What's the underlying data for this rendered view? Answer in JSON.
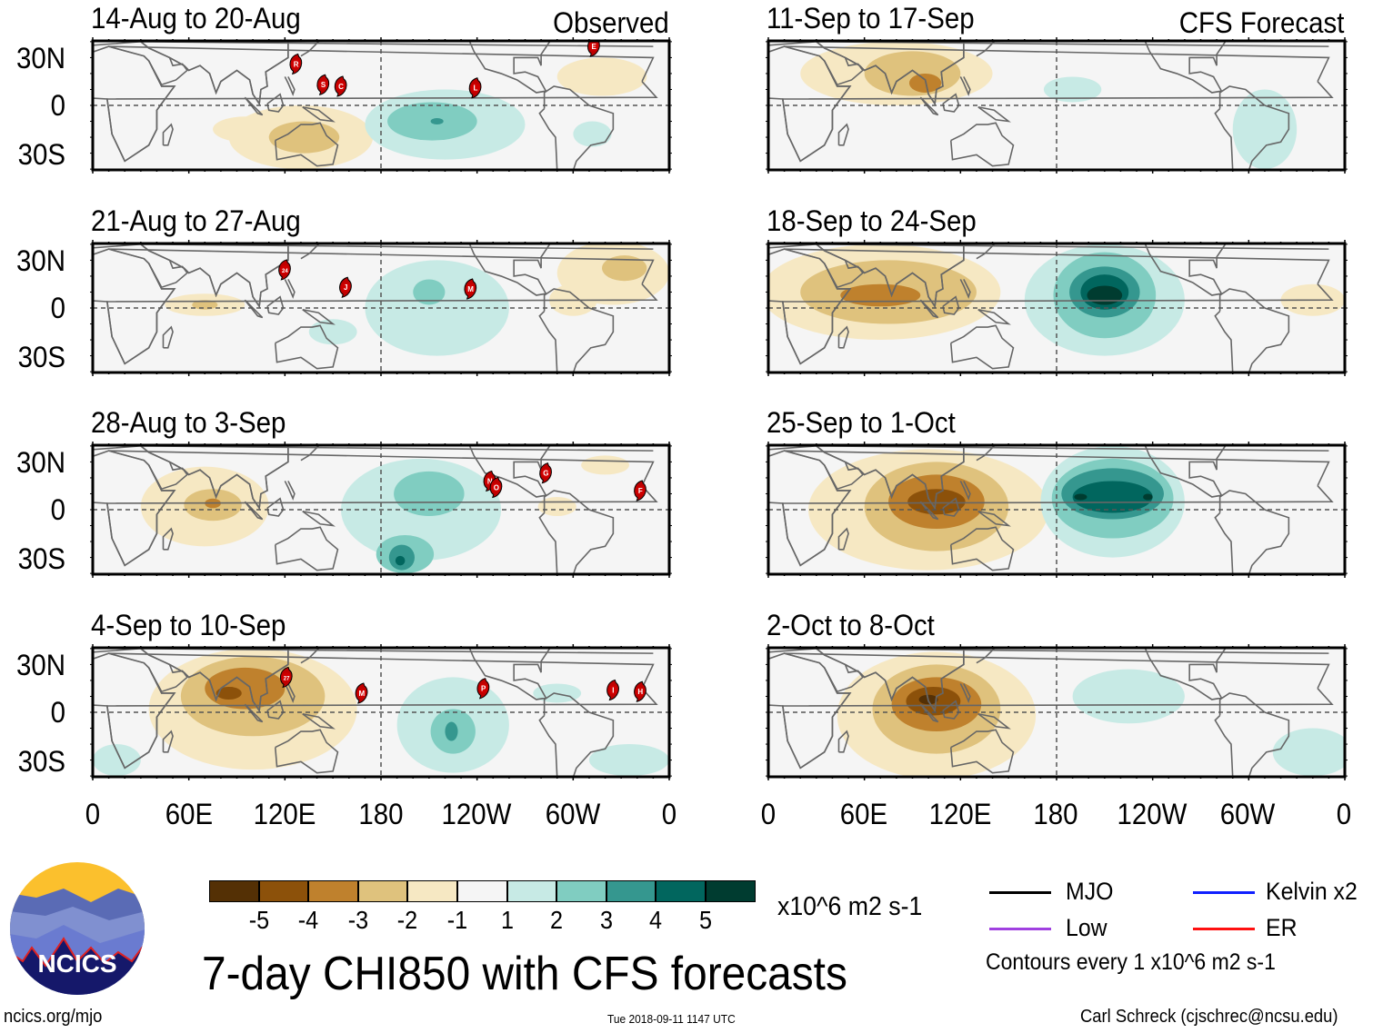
{
  "labels": {
    "observed": "Observed",
    "forecast": "CFS Forecast"
  },
  "y_ticks": [
    "30N",
    "0",
    "30S"
  ],
  "x_ticks": [
    "0",
    "60E",
    "120E",
    "180",
    "120W",
    "60W",
    "0"
  ],
  "colorbar": {
    "colors": [
      "#543005",
      "#8c510a",
      "#bf812d",
      "#dfc27d",
      "#f6e8c3",
      "#f5f5f5",
      "#c7eae5",
      "#80cdc1",
      "#35978f",
      "#01665e",
      "#003c30"
    ],
    "ticks": [
      "-5",
      "-4",
      "-3",
      "-2",
      "-1",
      "1",
      "2",
      "3",
      "4",
      "5"
    ],
    "units": "x10^6 m2 s-1"
  },
  "title": "7-day CHI850 with CFS forecasts",
  "legend": {
    "mjo": "MJO",
    "kelvin": "Kelvin x2",
    "low": "Low",
    "er": "ER",
    "contours": "Contours every 1 x10^6 m2 s-1",
    "colors": {
      "mjo": "#000000",
      "kelvin": "#0000ff",
      "low": "#a040e0",
      "er": "#ff0000"
    }
  },
  "logo": {
    "text": "NCICS"
  },
  "footer": {
    "url": "ncics.org/mjo",
    "timestamp": "Tue 2018-09-11 1147 UTC",
    "author": "Carl Schreck (cjschrec@ncsu.edu)"
  },
  "chart_data": [
    {
      "type": "map",
      "title": "14-Aug to 20-Aug",
      "column": "observed",
      "anomalies": [
        {
          "lon": 130,
          "lat": -20,
          "rlon": 45,
          "rlat": 20,
          "level": -1
        },
        {
          "lon": 132,
          "lat": -20,
          "rlon": 22,
          "rlat": 10,
          "level": -2
        },
        {
          "lon": 95,
          "lat": -15,
          "rlon": 20,
          "rlat": 8,
          "level": -1
        },
        {
          "lon": 220,
          "lat": -12,
          "rlon": 50,
          "rlat": 22,
          "level": 1
        },
        {
          "lon": 212,
          "lat": -10,
          "rlon": 28,
          "rlat": 12,
          "level": 2
        },
        {
          "lon": 215,
          "lat": -10,
          "rlon": 4,
          "rlat": 2,
          "level": 3
        },
        {
          "lon": 318,
          "lat": 18,
          "rlon": 28,
          "rlat": 12,
          "level": -1
        },
        {
          "lon": 312,
          "lat": -18,
          "rlon": 12,
          "rlat": 8,
          "level": 1
        }
      ],
      "storms": [
        {
          "id": "R",
          "lon": 127,
          "lat": 26
        },
        {
          "id": "S",
          "lon": 144,
          "lat": 13
        },
        {
          "id": "C",
          "lon": 155,
          "lat": 12
        },
        {
          "id": "L",
          "lon": 239,
          "lat": 11
        },
        {
          "id": "E",
          "lon": 313,
          "lat": 37
        }
      ]
    },
    {
      "type": "map",
      "title": "21-Aug to 27-Aug",
      "column": "observed",
      "anomalies": [
        {
          "lon": 325,
          "lat": 22,
          "rlon": 35,
          "rlat": 20,
          "level": -1
        },
        {
          "lon": 332,
          "lat": 25,
          "rlon": 14,
          "rlat": 8,
          "level": -2
        },
        {
          "lon": 70,
          "lat": 2,
          "rlon": 25,
          "rlat": 7,
          "level": -1
        },
        {
          "lon": 70,
          "lat": 2,
          "rlon": 8,
          "rlat": 3,
          "level": -2
        },
        {
          "lon": 215,
          "lat": 0,
          "rlon": 45,
          "rlat": 30,
          "level": 1
        },
        {
          "lon": 210,
          "lat": 10,
          "rlon": 10,
          "rlat": 8,
          "level": 2
        },
        {
          "lon": 150,
          "lat": -15,
          "rlon": 15,
          "rlat": 8,
          "level": 1
        },
        {
          "lon": 300,
          "lat": 5,
          "rlon": 15,
          "rlat": 10,
          "level": -1
        }
      ],
      "storms": [
        {
          "id": "24",
          "lon": 120,
          "lat": 24
        },
        {
          "id": "J",
          "lon": 158,
          "lat": 13
        },
        {
          "id": "M",
          "lon": 236,
          "lat": 12
        }
      ]
    },
    {
      "type": "map",
      "title": "28-Aug to 3-Sep",
      "column": "observed",
      "anomalies": [
        {
          "lon": 70,
          "lat": 2,
          "rlon": 40,
          "rlat": 25,
          "level": -1
        },
        {
          "lon": 75,
          "lat": 3,
          "rlon": 18,
          "rlat": 10,
          "level": -2
        },
        {
          "lon": 75,
          "lat": 4,
          "rlon": 5,
          "rlat": 3,
          "level": -3
        },
        {
          "lon": 205,
          "lat": 0,
          "rlon": 50,
          "rlat": 32,
          "level": 1
        },
        {
          "lon": 210,
          "lat": 10,
          "rlon": 22,
          "rlat": 14,
          "level": 2
        },
        {
          "lon": 195,
          "lat": -28,
          "rlon": 18,
          "rlat": 12,
          "level": 2
        },
        {
          "lon": 193,
          "lat": -30,
          "rlon": 8,
          "rlat": 8,
          "level": 3
        },
        {
          "lon": 192,
          "lat": -32,
          "rlon": 3,
          "rlat": 3,
          "level": 4
        },
        {
          "lon": 290,
          "lat": 2,
          "rlon": 12,
          "rlat": 6,
          "level": -1
        },
        {
          "lon": 320,
          "lat": 28,
          "rlon": 15,
          "rlat": 6,
          "level": -1
        }
      ],
      "storms": [
        {
          "id": "N",
          "lon": 248,
          "lat": 18
        },
        {
          "id": "O",
          "lon": 252,
          "lat": 14
        },
        {
          "id": "G",
          "lon": 283,
          "lat": 23
        },
        {
          "id": "F",
          "lon": 342,
          "lat": 12
        }
      ]
    },
    {
      "type": "map",
      "title": "4-Sep to 10-Sep",
      "column": "observed",
      "anomalies": [
        {
          "lon": 100,
          "lat": 2,
          "rlon": 65,
          "rlat": 38,
          "level": -1
        },
        {
          "lon": 100,
          "lat": 10,
          "rlon": 45,
          "rlat": 25,
          "level": -2
        },
        {
          "lon": 95,
          "lat": 15,
          "rlon": 25,
          "rlat": 13,
          "level": -3
        },
        {
          "lon": 85,
          "lat": 12,
          "rlon": 8,
          "rlat": 4,
          "level": -4
        },
        {
          "lon": 225,
          "lat": -8,
          "rlon": 35,
          "rlat": 30,
          "level": 1
        },
        {
          "lon": 225,
          "lat": -12,
          "rlon": 14,
          "rlat": 14,
          "level": 2
        },
        {
          "lon": 224,
          "lat": -12,
          "rlon": 4,
          "rlat": 6,
          "level": 3
        },
        {
          "lon": 15,
          "lat": -30,
          "rlon": 15,
          "rlat": 10,
          "level": 1
        },
        {
          "lon": 335,
          "lat": -30,
          "rlon": 25,
          "rlat": 10,
          "level": 1
        },
        {
          "lon": 290,
          "lat": 12,
          "rlon": 15,
          "rlat": 6,
          "level": 1
        }
      ],
      "storms": [
        {
          "id": "27",
          "lon": 121,
          "lat": 22
        },
        {
          "id": "M",
          "lon": 168,
          "lat": 12
        },
        {
          "id": "P",
          "lon": 244,
          "lat": 15
        },
        {
          "id": "I",
          "lon": 325,
          "lat": 14
        },
        {
          "id": "H",
          "lon": 342,
          "lat": 13
        }
      ]
    },
    {
      "type": "map",
      "title": "11-Sep to 17-Sep",
      "column": "forecast",
      "anomalies": [
        {
          "lon": 80,
          "lat": 20,
          "rlon": 60,
          "rlat": 20,
          "level": -1
        },
        {
          "lon": 90,
          "lat": 20,
          "rlon": 30,
          "rlat": 14,
          "level": -2
        },
        {
          "lon": 98,
          "lat": 14,
          "rlon": 10,
          "rlat": 6,
          "level": -3
        },
        {
          "lon": 190,
          "lat": 10,
          "rlon": 18,
          "rlat": 8,
          "level": 1
        },
        {
          "lon": 310,
          "lat": -15,
          "rlon": 20,
          "rlat": 25,
          "level": 1
        }
      ],
      "storms": []
    },
    {
      "type": "map",
      "title": "18-Sep to 24-Sep",
      "column": "forecast",
      "anomalies": [
        {
          "lon": 70,
          "lat": 10,
          "rlon": 75,
          "rlat": 30,
          "level": -1
        },
        {
          "lon": 75,
          "lat": 10,
          "rlon": 55,
          "rlat": 20,
          "level": -2
        },
        {
          "lon": 70,
          "lat": 8,
          "rlon": 25,
          "rlat": 7,
          "level": -3
        },
        {
          "lon": 210,
          "lat": 5,
          "rlon": 50,
          "rlat": 35,
          "level": 1
        },
        {
          "lon": 210,
          "lat": 8,
          "rlon": 32,
          "rlat": 27,
          "level": 2
        },
        {
          "lon": 210,
          "lat": 10,
          "rlon": 22,
          "rlat": 16,
          "level": 3
        },
        {
          "lon": 210,
          "lat": 10,
          "rlon": 15,
          "rlat": 11,
          "level": 4
        },
        {
          "lon": 210,
          "lat": 8,
          "rlon": 11,
          "rlat": 6,
          "level": 5
        },
        {
          "lon": 340,
          "lat": 5,
          "rlon": 20,
          "rlat": 10,
          "level": -1
        }
      ],
      "storms": []
    },
    {
      "type": "map",
      "title": "25-Sep to 1-Oct",
      "column": "forecast",
      "anomalies": [
        {
          "lon": 100,
          "lat": 0,
          "rlon": 75,
          "rlat": 38,
          "level": -1
        },
        {
          "lon": 105,
          "lat": 2,
          "rlon": 45,
          "rlat": 28,
          "level": -2
        },
        {
          "lon": 105,
          "lat": 5,
          "rlon": 30,
          "rlat": 17,
          "level": -3
        },
        {
          "lon": 105,
          "lat": 5,
          "rlon": 18,
          "rlat": 8,
          "level": -4
        },
        {
          "lon": 215,
          "lat": 5,
          "rlon": 45,
          "rlat": 35,
          "level": 1
        },
        {
          "lon": 215,
          "lat": 7,
          "rlon": 38,
          "rlat": 25,
          "level": 2
        },
        {
          "lon": 215,
          "lat": 10,
          "rlon": 32,
          "rlat": 16,
          "level": 3
        },
        {
          "lon": 215,
          "lat": 8,
          "rlon": 25,
          "rlat": 10,
          "level": 4
        },
        {
          "lon": 195,
          "lat": 8,
          "rlon": 4,
          "rlat": 2,
          "level": 5
        },
        {
          "lon": 237,
          "lat": 8,
          "rlon": 3,
          "rlat": 2,
          "level": 5
        }
      ],
      "storms": []
    },
    {
      "type": "map",
      "title": "2-Oct to 8-Oct",
      "column": "forecast",
      "anomalies": [
        {
          "lon": 105,
          "lat": -2,
          "rlon": 62,
          "rlat": 40,
          "level": -1
        },
        {
          "lon": 105,
          "lat": 2,
          "rlon": 40,
          "rlat": 28,
          "level": -2
        },
        {
          "lon": 105,
          "lat": 5,
          "rlon": 28,
          "rlat": 17,
          "level": -3
        },
        {
          "lon": 103,
          "lat": 7,
          "rlon": 17,
          "rlat": 9,
          "level": -4
        },
        {
          "lon": 100,
          "lat": 8,
          "rlon": 6,
          "rlat": 3,
          "level": -5
        },
        {
          "lon": 225,
          "lat": 10,
          "rlon": 35,
          "rlat": 17,
          "level": 1
        },
        {
          "lon": 340,
          "lat": -25,
          "rlon": 25,
          "rlat": 15,
          "level": 1
        }
      ],
      "storms": []
    }
  ]
}
